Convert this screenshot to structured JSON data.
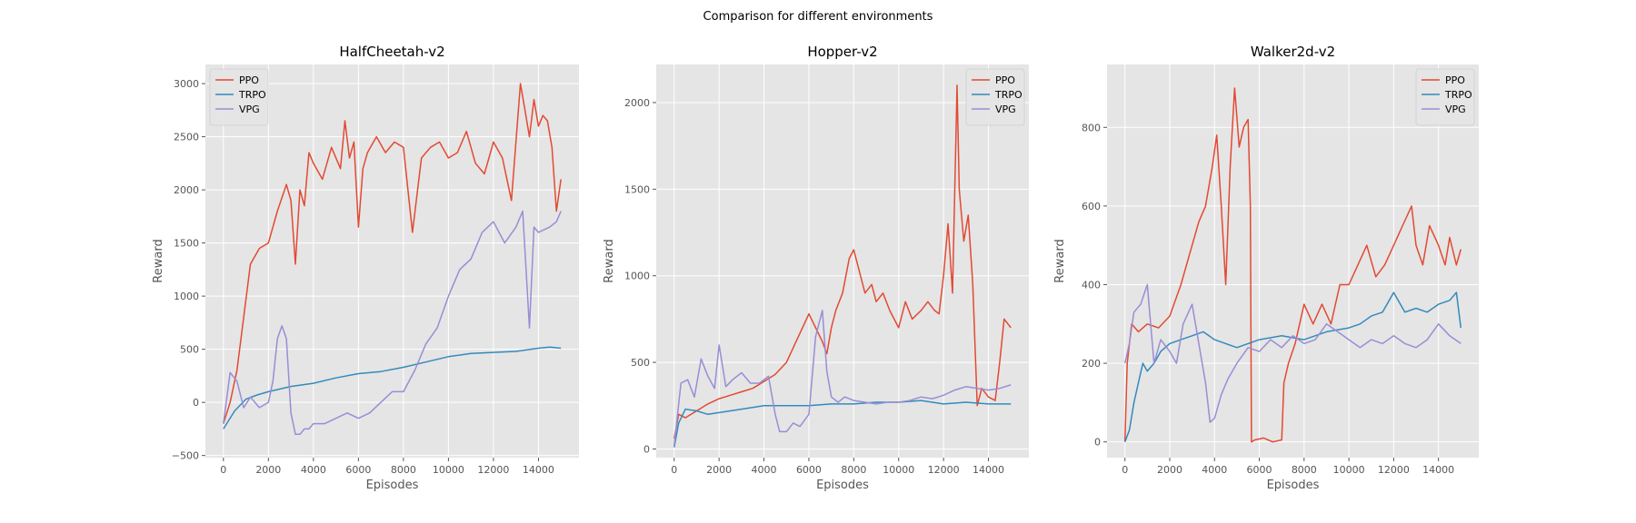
{
  "suptitle": "Comparison for different environments",
  "colors": {
    "PPO": "#e24a33",
    "TRPO": "#348abd",
    "VPG": "#988ed5",
    "axes_bg": "#e5e5e5",
    "grid": "#ffffff"
  },
  "chart_data": [
    {
      "type": "line",
      "title": "HalfCheetah-v2",
      "xlabel": "Episodes",
      "ylabel": "Reward",
      "xlim": [
        -800,
        15800
      ],
      "ylim": [
        -520,
        3180
      ],
      "xticks": [
        0,
        2000,
        4000,
        6000,
        8000,
        10000,
        12000,
        14000
      ],
      "yticks": [
        -500,
        0,
        500,
        1000,
        1500,
        2000,
        2500,
        3000
      ],
      "grid": true,
      "legend_placement": "top-left",
      "series": [
        {
          "name": "PPO",
          "color": "#e24a33",
          "x": [
            0,
            300,
            600,
            900,
            1200,
            1600,
            2000,
            2400,
            2800,
            3000,
            3200,
            3400,
            3600,
            3800,
            4000,
            4400,
            4800,
            5200,
            5400,
            5600,
            5800,
            6000,
            6200,
            6400,
            6800,
            7200,
            7600,
            8000,
            8400,
            8800,
            9200,
            9600,
            10000,
            10400,
            10800,
            11200,
            11600,
            12000,
            12400,
            12800,
            13200,
            13400,
            13600,
            13800,
            14000,
            14200,
            14400,
            14600,
            14800,
            15000
          ],
          "y": [
            -200,
            0,
            300,
            800,
            1300,
            1450,
            1500,
            1800,
            2050,
            1900,
            1300,
            2000,
            1850,
            2350,
            2250,
            2100,
            2400,
            2200,
            2650,
            2300,
            2450,
            1650,
            2200,
            2350,
            2500,
            2350,
            2450,
            2400,
            1600,
            2300,
            2400,
            2450,
            2300,
            2350,
            2550,
            2250,
            2150,
            2450,
            2300,
            1900,
            3000,
            2750,
            2500,
            2850,
            2600,
            2700,
            2650,
            2400,
            1800,
            2100
          ]
        },
        {
          "name": "TRPO",
          "color": "#348abd",
          "x": [
            0,
            500,
            1000,
            1500,
            2000,
            3000,
            4000,
            5000,
            6000,
            7000,
            8000,
            9000,
            10000,
            11000,
            12000,
            13000,
            14000,
            14500,
            15000
          ],
          "y": [
            -250,
            -80,
            30,
            70,
            100,
            150,
            180,
            230,
            270,
            290,
            330,
            380,
            430,
            460,
            470,
            480,
            510,
            520,
            510
          ]
        },
        {
          "name": "VPG",
          "color": "#988ed5",
          "x": [
            0,
            300,
            600,
            900,
            1200,
            1600,
            2000,
            2200,
            2400,
            2600,
            2800,
            3000,
            3200,
            3400,
            3600,
            3800,
            4000,
            4500,
            5000,
            5500,
            6000,
            6500,
            7000,
            7500,
            8000,
            8500,
            9000,
            9500,
            10000,
            10500,
            11000,
            11500,
            12000,
            12500,
            13000,
            13300,
            13600,
            13800,
            14000,
            14500,
            14800,
            15000
          ],
          "y": [
            -200,
            280,
            200,
            -50,
            50,
            -50,
            0,
            200,
            600,
            720,
            600,
            -100,
            -300,
            -300,
            -250,
            -250,
            -200,
            -200,
            -150,
            -100,
            -150,
            -100,
            0,
            100,
            100,
            300,
            550,
            700,
            1000,
            1250,
            1350,
            1600,
            1700,
            1500,
            1650,
            1800,
            700,
            1650,
            1600,
            1650,
            1700,
            1800
          ]
        }
      ]
    },
    {
      "type": "line",
      "title": "Hopper-v2",
      "xlabel": "Episodes",
      "ylabel": "Reward",
      "xlim": [
        -800,
        15800
      ],
      "ylim": [
        -50,
        2220
      ],
      "xticks": [
        0,
        2000,
        4000,
        6000,
        8000,
        10000,
        12000,
        14000
      ],
      "yticks": [
        0,
        500,
        1000,
        1500,
        2000
      ],
      "grid": true,
      "legend_placement": "top-right",
      "series": [
        {
          "name": "PPO",
          "color": "#e24a33",
          "x": [
            0,
            200,
            500,
            1000,
            1500,
            2000,
            2500,
            3000,
            3500,
            4000,
            4500,
            5000,
            5500,
            6000,
            6300,
            6600,
            6800,
            7000,
            7200,
            7500,
            7800,
            8000,
            8200,
            8500,
            8800,
            9000,
            9300,
            9600,
            10000,
            10300,
            10600,
            11000,
            11300,
            11600,
            11800,
            12000,
            12200,
            12400,
            12600,
            12700,
            12900,
            13100,
            13300,
            13500,
            13700,
            14000,
            14300,
            14500,
            14700,
            15000
          ],
          "y": [
            60,
            200,
            180,
            220,
            260,
            290,
            310,
            330,
            350,
            390,
            430,
            500,
            640,
            780,
            700,
            620,
            550,
            700,
            800,
            900,
            1100,
            1150,
            1050,
            900,
            950,
            850,
            900,
            800,
            700,
            850,
            750,
            800,
            850,
            800,
            780,
            1000,
            1300,
            900,
            2100,
            1500,
            1200,
            1350,
            950,
            250,
            350,
            300,
            280,
            500,
            750,
            700
          ]
        },
        {
          "name": "TRPO",
          "color": "#348abd",
          "x": [
            0,
            200,
            500,
            1000,
            1500,
            2000,
            3000,
            4000,
            5000,
            6000,
            7000,
            8000,
            9000,
            10000,
            11000,
            12000,
            13000,
            14000,
            15000
          ],
          "y": [
            10,
            150,
            230,
            220,
            200,
            210,
            230,
            250,
            250,
            250,
            260,
            260,
            270,
            270,
            280,
            260,
            270,
            260,
            260
          ]
        },
        {
          "name": "VPG",
          "color": "#988ed5",
          "x": [
            0,
            300,
            600,
            900,
            1200,
            1500,
            1800,
            2000,
            2300,
            2600,
            3000,
            3400,
            3800,
            4200,
            4500,
            4700,
            5000,
            5300,
            5600,
            6000,
            6300,
            6600,
            6800,
            7000,
            7300,
            7600,
            8000,
            8500,
            9000,
            9500,
            10000,
            10500,
            11000,
            11500,
            12000,
            12500,
            13000,
            13500,
            14000,
            14500,
            15000
          ],
          "y": [
            20,
            380,
            400,
            300,
            520,
            420,
            350,
            600,
            360,
            400,
            440,
            380,
            380,
            420,
            200,
            100,
            100,
            150,
            130,
            200,
            650,
            800,
            450,
            300,
            270,
            300,
            280,
            270,
            260,
            270,
            270,
            280,
            300,
            290,
            310,
            340,
            360,
            350,
            340,
            350,
            370
          ]
        }
      ]
    },
    {
      "type": "line",
      "title": "Walker2d-v2",
      "xlabel": "Episodes",
      "ylabel": "Reward",
      "xlim": [
        -800,
        15800
      ],
      "ylim": [
        -40,
        960
      ],
      "xticks": [
        0,
        2000,
        4000,
        6000,
        8000,
        10000,
        12000,
        14000
      ],
      "yticks": [
        0,
        200,
        400,
        600,
        800
      ],
      "grid": true,
      "legend_placement": "top-right",
      "series": [
        {
          "name": "PPO",
          "color": "#e24a33",
          "x": [
            0,
            100,
            300,
            600,
            1000,
            1500,
            2000,
            2500,
            3000,
            3300,
            3600,
            3900,
            4100,
            4300,
            4500,
            4700,
            4900,
            5100,
            5300,
            5500,
            5600,
            5650,
            5800,
            6200,
            6600,
            7000,
            7100,
            7300,
            7600,
            8000,
            8400,
            8800,
            9200,
            9600,
            10000,
            10400,
            10800,
            11200,
            11600,
            12000,
            12400,
            12800,
            13000,
            13300,
            13600,
            14000,
            14300,
            14500,
            14800,
            15000
          ],
          "y": [
            0,
            200,
            300,
            280,
            300,
            290,
            320,
            400,
            500,
            560,
            600,
            700,
            780,
            600,
            400,
            700,
            900,
            750,
            800,
            820,
            600,
            0,
            5,
            10,
            0,
            5,
            150,
            200,
            250,
            350,
            300,
            350,
            300,
            400,
            400,
            450,
            500,
            420,
            450,
            500,
            550,
            600,
            500,
            450,
            550,
            500,
            450,
            520,
            450,
            490
          ]
        },
        {
          "name": "TRPO",
          "color": "#348abd",
          "x": [
            0,
            200,
            400,
            600,
            800,
            1000,
            1300,
            1600,
            2000,
            2500,
            3000,
            3500,
            4000,
            5000,
            6000,
            7000,
            8000,
            9000,
            10000,
            10500,
            11000,
            11500,
            12000,
            12500,
            13000,
            13500,
            14000,
            14500,
            14800,
            15000
          ],
          "y": [
            0,
            30,
            100,
            150,
            200,
            180,
            200,
            230,
            250,
            260,
            270,
            280,
            260,
            240,
            260,
            270,
            260,
            280,
            290,
            300,
            320,
            330,
            380,
            330,
            340,
            330,
            350,
            360,
            380,
            290
          ]
        },
        {
          "name": "VPG",
          "color": "#988ed5",
          "x": [
            0,
            200,
            400,
            700,
            1000,
            1300,
            1600,
            2000,
            2300,
            2600,
            3000,
            3300,
            3600,
            3800,
            4000,
            4300,
            4600,
            5000,
            5500,
            6000,
            6500,
            7000,
            7500,
            8000,
            8500,
            9000,
            9500,
            10000,
            10500,
            11000,
            11500,
            12000,
            12500,
            13000,
            13500,
            14000,
            14500,
            15000
          ],
          "y": [
            200,
            250,
            330,
            350,
            400,
            200,
            260,
            230,
            200,
            300,
            350,
            250,
            150,
            50,
            60,
            120,
            160,
            200,
            240,
            230,
            260,
            240,
            270,
            250,
            260,
            300,
            280,
            260,
            240,
            260,
            250,
            270,
            250,
            240,
            260,
            300,
            270,
            250
          ]
        }
      ]
    }
  ]
}
